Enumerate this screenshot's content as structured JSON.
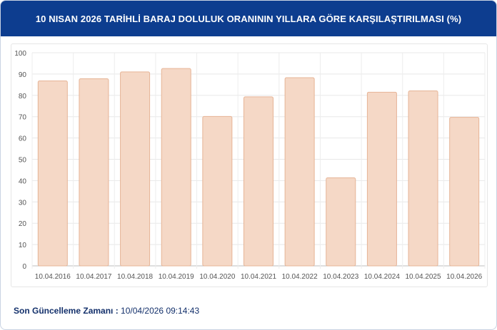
{
  "header": {
    "title": "10 NISAN 2026 TARİHLİ BARAJ DOLULUK ORANININ YILLARA GÖRE KARŞILAŞTIRILMASI (%)"
  },
  "footer": {
    "label": "Son Güncelleme Zamanı :",
    "value": "10/04/2026 09:14:43"
  },
  "colors": {
    "bar_fill": "#f5d8c6",
    "bar_stroke": "#e6b496",
    "header_bg": "#0d3d8f",
    "footer_text": "#13306b"
  },
  "chart_data": {
    "type": "bar",
    "title": "10 NISAN 2026 TARİHLİ BARAJ DOLULUK ORANININ YILLARA GÖRE KARŞILAŞTIRILMASI (%)",
    "categories": [
      "10.04.2016",
      "10.04.2017",
      "10.04.2018",
      "10.04.2019",
      "10.04.2020",
      "10.04.2021",
      "10.04.2022",
      "10.04.2023",
      "10.04.2024",
      "10.04.2025",
      "10.04.2026"
    ],
    "values": [
      86.8,
      87.8,
      91.0,
      92.6,
      70.1,
      79.3,
      88.3,
      41.3,
      81.5,
      82.1,
      69.7
    ],
    "ylim": [
      0,
      100
    ],
    "yticks": [
      0,
      10,
      20,
      30,
      40,
      50,
      60,
      70,
      80,
      90,
      100
    ],
    "xlabel": "",
    "ylabel": "",
    "grid": true,
    "legend": "none"
  }
}
